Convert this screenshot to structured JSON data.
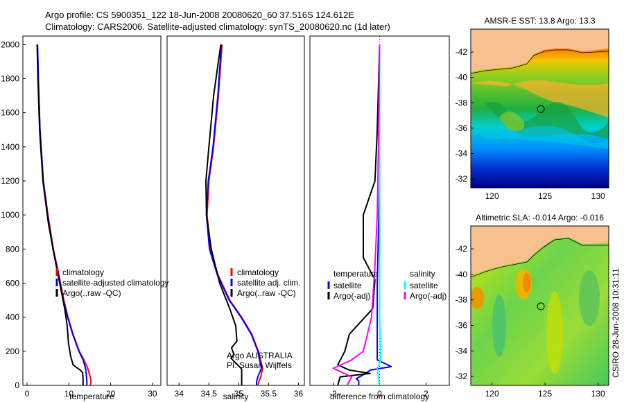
{
  "header": {
    "line1": "Argo profile: CS 5900351_122 18-Jun-2008 20080620_60 37.516S 124.612E",
    "line2": "Climatology: CARS2006. Satellite-adjusted climatology: synTS_20080620.nc (1d later)"
  },
  "footer_text": "CSIRO 28-Jun-2008 10:31:11",
  "colors": {
    "climatology": "#ff0000",
    "satellite": "#0000ff",
    "argo": "#000000",
    "satellite_diff_salinity": "#00ffff",
    "argo_diff_salinity": "#ff00ff",
    "land": "#f7c08f"
  },
  "chart_data": [
    {
      "id": "temperature",
      "type": "line",
      "xlabel": "temperature",
      "ylabel": "",
      "xlim": [
        -1,
        32
      ],
      "ylim": [
        2050,
        0
      ],
      "xticks": [
        0,
        10,
        20,
        30
      ],
      "xticklabels": [
        "0",
        "10",
        "20",
        "30"
      ],
      "yticks": [
        0,
        200,
        400,
        600,
        800,
        1000,
        1200,
        1400,
        1600,
        1800,
        2000
      ],
      "yticklabels": [
        "0",
        "200",
        "400",
        "600",
        "800",
        "1000",
        "1200",
        "1400",
        "1600",
        "1800",
        "2000"
      ],
      "legend": [
        "climatology",
        "satellite-adjusted climatology",
        "Argo(..raw -QC)"
      ],
      "series": [
        {
          "name": "climatology",
          "color": "#ff0000",
          "x": [
            15.2,
            15.3,
            15.1,
            14.5,
            13.6,
            12.5,
            11.0,
            9.8,
            8.8,
            7.6,
            6.3,
            5.0,
            3.9,
            3.1,
            2.7,
            2.5
          ],
          "y": [
            0,
            25,
            50,
            100,
            150,
            200,
            300,
            400,
            500,
            650,
            800,
            1000,
            1200,
            1500,
            1800,
            2000
          ]
        },
        {
          "name": "satellite-adjusted climatology",
          "color": "#0000ff",
          "x": [
            14.3,
            14.3,
            14.2,
            14.0,
            13.4,
            12.4,
            10.9,
            9.7,
            8.7,
            7.5,
            6.2,
            4.9,
            3.9,
            3.1,
            2.7,
            2.5
          ],
          "y": [
            0,
            25,
            50,
            100,
            150,
            200,
            300,
            400,
            500,
            650,
            800,
            1000,
            1200,
            1500,
            1800,
            2000
          ]
        },
        {
          "name": "Argo(..raw -QC)",
          "color": "#000000",
          "x": [
            13.4,
            13.4,
            13.3,
            12.7,
            11.0,
            10.4,
            9.9,
            9.6,
            9.0,
            7.8,
            6.6,
            5.1,
            3.8,
            3.0,
            2.6,
            2.4
          ],
          "y": [
            0,
            40,
            75,
            90,
            120,
            175,
            250,
            350,
            450,
            600,
            750,
            950,
            1200,
            1500,
            1800,
            2000
          ]
        }
      ]
    },
    {
      "id": "salinity",
      "type": "line",
      "xlabel": "salinity",
      "xlim": [
        33.8,
        36.1
      ],
      "ylim": [
        2050,
        0
      ],
      "xticks": [
        34,
        34.5,
        35,
        35.5,
        36
      ],
      "xticklabels": [
        "34",
        "34.5",
        "35",
        "35.5",
        "36"
      ],
      "legend": [
        "climatology",
        "satellite adj. clim.",
        "Argo(..raw -QC)"
      ],
      "annotation": [
        "Argo AUSTRALIA",
        "PI: Susan Wijffels"
      ],
      "series": [
        {
          "name": "climatology",
          "color": "#ff0000",
          "x": [
            35.32,
            35.34,
            35.37,
            35.4,
            35.33,
            35.22,
            35.05,
            34.85,
            34.65,
            34.52,
            34.47,
            34.5,
            34.58,
            34.66,
            34.7,
            34.72
          ],
          "y": [
            0,
            25,
            50,
            100,
            200,
            300,
            400,
            500,
            650,
            800,
            1000,
            1200,
            1400,
            1700,
            1900,
            2000
          ]
        },
        {
          "name": "satellite adj. clim.",
          "color": "#0000ff",
          "x": [
            35.3,
            35.3,
            35.32,
            35.38,
            35.32,
            35.21,
            35.04,
            34.84,
            34.64,
            34.51,
            34.46,
            34.49,
            34.57,
            34.65,
            34.69,
            34.71
          ],
          "y": [
            0,
            25,
            50,
            100,
            200,
            300,
            400,
            500,
            650,
            800,
            1000,
            1200,
            1400,
            1700,
            1900,
            2000
          ]
        },
        {
          "name": "Argo(..raw -QC)",
          "color": "#000000",
          "x": [
            35.05,
            35.05,
            35.05,
            35.04,
            34.87,
            34.92,
            34.88,
            34.97,
            34.95,
            34.85,
            34.68,
            34.54,
            34.46,
            34.45,
            34.5,
            34.58,
            34.66,
            34.7
          ],
          "y": [
            0,
            40,
            90,
            100,
            160,
            180,
            220,
            260,
            350,
            450,
            600,
            800,
            1000,
            1200,
            1400,
            1700,
            1900,
            2000
          ]
        }
      ]
    },
    {
      "id": "difference",
      "type": "line",
      "xlabel": "difference from climatology",
      "xlim": [
        -3,
        3
      ],
      "ylim": [
        2050,
        0
      ],
      "xticks": [
        -2,
        0,
        2
      ],
      "xticklabels": [
        "-2",
        "0",
        "2"
      ],
      "legend_groups": [
        {
          "heading": "temperature",
          "items": [
            {
              "label": "satellite",
              "color": "#0000ff"
            },
            {
              "label": "Argo(-adj)",
              "color": "#000000"
            }
          ]
        },
        {
          "heading": "salinity",
          "items": [
            {
              "label": "satellite",
              "color": "#00ffff"
            },
            {
              "label": "Argo(-adj)",
              "color": "#ff00ff"
            }
          ]
        }
      ],
      "series": [
        {
          "name": "temperature satellite",
          "color": "#0000ff",
          "x": [
            -0.9,
            -0.9,
            -1.0,
            -0.6,
            -0.4,
            0.5,
            -0.1,
            -0.1,
            -0.1,
            -0.05,
            0.0,
            0.0,
            0.0
          ],
          "y": [
            0,
            25,
            40,
            70,
            90,
            110,
            150,
            300,
            600,
            900,
            1200,
            1600,
            2000
          ]
        },
        {
          "name": "temperature Argo(-adj)",
          "color": "#000000",
          "x": [
            -1.8,
            -1.7,
            -0.4,
            -1.3,
            -1.8,
            -1.5,
            -1.3,
            -0.3,
            -0.2,
            -0.7,
            -0.7,
            -0.2,
            -0.1,
            0.0
          ],
          "y": [
            0,
            50,
            70,
            90,
            120,
            200,
            300,
            450,
            620,
            750,
            1000,
            1200,
            1500,
            2000
          ]
        },
        {
          "name": "salinity satellite",
          "color": "#00ffff",
          "x": [
            -0.02,
            -0.05,
            -0.1,
            0.05,
            0.0,
            0.0,
            0.0,
            0.0
          ],
          "y": [
            0,
            50,
            100,
            150,
            400,
            900,
            1400,
            2000
          ]
        },
        {
          "name": "salinity Argo(-adj)",
          "color": "#ff00ff",
          "x": [
            -1.4,
            -1.2,
            -2.0,
            -1.2,
            -0.7,
            -0.35,
            -0.2,
            -0.1,
            -0.05,
            0.0
          ],
          "y": [
            0,
            50,
            100,
            150,
            200,
            400,
            700,
            1000,
            1400,
            2000
          ]
        }
      ]
    },
    {
      "id": "sst_map",
      "type": "heatmap",
      "title": "AMSR-E SST: 13.8  Argo: 13.3",
      "xlim": [
        118,
        131
      ],
      "ylim": [
        -43.8,
        -31.3
      ],
      "xticks": [
        120,
        125,
        130
      ],
      "xticklabels": [
        "120",
        "125",
        "130"
      ],
      "yticks": [
        -32,
        -34,
        -36,
        -38,
        -40,
        -42
      ],
      "yticklabels": [
        "-32",
        "-34",
        "-36",
        "-38",
        "-40",
        "-42"
      ],
      "marker": {
        "lon": 124.6,
        "lat": -37.5
      }
    },
    {
      "id": "sla_map",
      "type": "heatmap",
      "title": "Altimetric SLA: -0.014  Argo: -0.016",
      "xlim": [
        118,
        131
      ],
      "ylim": [
        -43.8,
        -31.3
      ],
      "xticks": [
        120,
        125,
        130
      ],
      "xticklabels": [
        "120",
        "125",
        "130"
      ],
      "yticks": [
        -32,
        -34,
        -36,
        -38,
        -40,
        -42
      ],
      "yticklabels": [
        "-32",
        "-34",
        "-36",
        "-38",
        "-40",
        "-42"
      ],
      "marker": {
        "lon": 124.6,
        "lat": -37.5
      }
    }
  ]
}
